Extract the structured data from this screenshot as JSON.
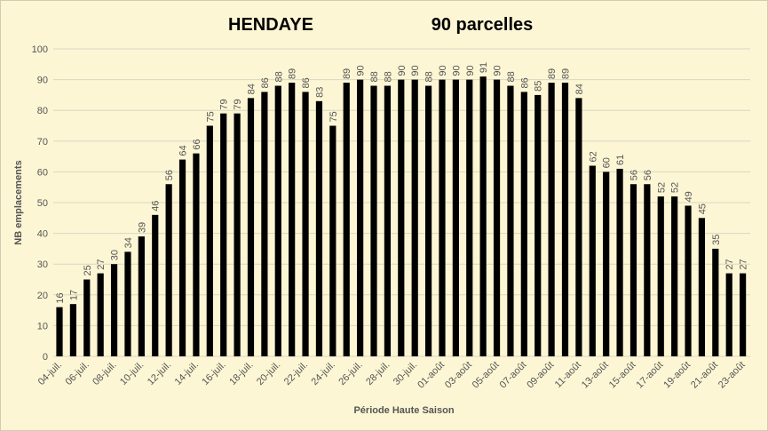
{
  "chart_data": {
    "type": "bar",
    "title": "HENDAYE",
    "subtitle": "90 parcelles",
    "x_label": "Période Haute Saison",
    "y_label": "NB emplacements",
    "categories": [
      "04-juil.",
      null,
      "06-juil.",
      null,
      "08-juil.",
      null,
      "10-juil.",
      null,
      "12-juil.",
      null,
      "14-juil.",
      null,
      "16-juil.",
      null,
      "18-juil.",
      null,
      "20-juil.",
      null,
      "22-juil.",
      null,
      "24-juil.",
      null,
      "26-juil.",
      null,
      "28-juil.",
      null,
      "30-juil.",
      null,
      "01-août",
      null,
      "03-août",
      null,
      "05-août",
      null,
      "07-août",
      null,
      "09-août",
      null,
      "11-août",
      null,
      "13-août",
      null,
      "15-août",
      null,
      "17-août",
      null,
      "19-août",
      null,
      "21-août",
      null,
      "23-août"
    ],
    "values": [
      16,
      17,
      25,
      27,
      30,
      34,
      39,
      46,
      56,
      64,
      66,
      75,
      79,
      79,
      84,
      86,
      88,
      89,
      86,
      83,
      75,
      89,
      90,
      88,
      88,
      90,
      90,
      88,
      90,
      90,
      90,
      91,
      90,
      88,
      86,
      85,
      89,
      89,
      84,
      62,
      60,
      61,
      56,
      56,
      52,
      52,
      49,
      45,
      35,
      27,
      27
    ],
    "color": "#000000",
    "ylim": [
      0,
      100
    ],
    "yticks": [
      0,
      10,
      20,
      30,
      40,
      50,
      60,
      70,
      80,
      90,
      100
    ],
    "grid": true
  }
}
